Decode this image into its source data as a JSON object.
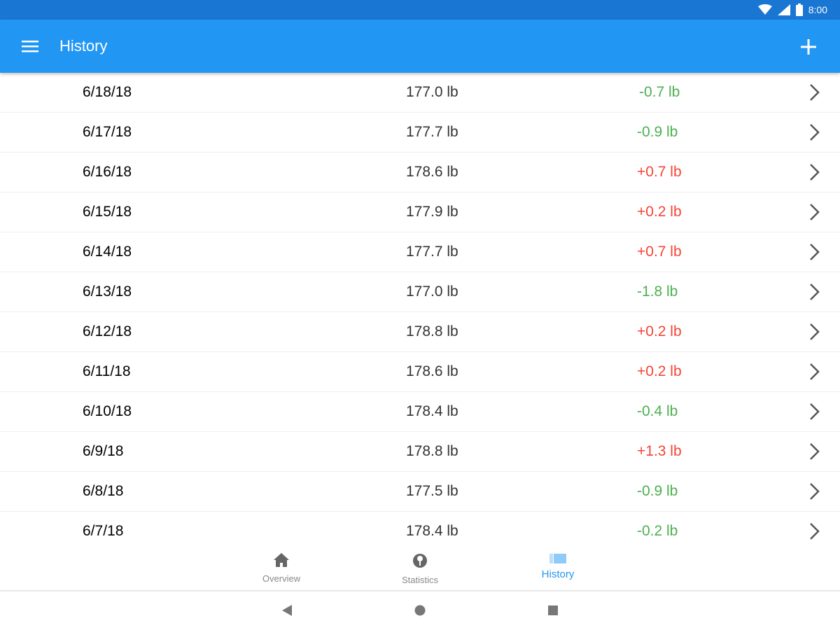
{
  "status_bar": {
    "time": "8:00"
  },
  "app_bar": {
    "title": "History",
    "menu_icon": "menu-icon",
    "add_icon": "plus-icon"
  },
  "colors": {
    "status_bar": "#1976D2",
    "app_bar": "#2196F3",
    "decrease": "#4CAF50",
    "increase": "#F44336",
    "active_tab": "#2196F3"
  },
  "history": [
    {
      "date": "6/18/18",
      "weight": "177.0 lb",
      "delta": "-0.7 lb",
      "trend": "down"
    },
    {
      "date": "6/17/18",
      "weight": "177.7 lb",
      "delta": "-0.9 lb",
      "trend": "down"
    },
    {
      "date": "6/16/18",
      "weight": "178.6 lb",
      "delta": "+0.7 lb",
      "trend": "up"
    },
    {
      "date": "6/15/18",
      "weight": "177.9 lb",
      "delta": "+0.2 lb",
      "trend": "up"
    },
    {
      "date": "6/14/18",
      "weight": "177.7 lb",
      "delta": "+0.7 lb",
      "trend": "up"
    },
    {
      "date": "6/13/18",
      "weight": "177.0 lb",
      "delta": "-1.8 lb",
      "trend": "down"
    },
    {
      "date": "6/12/18",
      "weight": "178.8 lb",
      "delta": "+0.2 lb",
      "trend": "up"
    },
    {
      "date": "6/11/18",
      "weight": "178.6 lb",
      "delta": "+0.2 lb",
      "trend": "up"
    },
    {
      "date": "6/10/18",
      "weight": "178.4 lb",
      "delta": "-0.4 lb",
      "trend": "down"
    },
    {
      "date": "6/9/18",
      "weight": "178.8 lb",
      "delta": "+1.3 lb",
      "trend": "up"
    },
    {
      "date": "6/8/18",
      "weight": "177.5 lb",
      "delta": "-0.9 lb",
      "trend": "down"
    },
    {
      "date": "6/7/18",
      "weight": "178.4 lb",
      "delta": "-0.2 lb",
      "trend": "down"
    }
  ],
  "bottom_nav": [
    {
      "label": "Overview",
      "icon": "home-icon",
      "active": false
    },
    {
      "label": "Statistics",
      "icon": "scale-icon",
      "active": false
    },
    {
      "label": "History",
      "icon": "list-icon",
      "active": true
    }
  ]
}
